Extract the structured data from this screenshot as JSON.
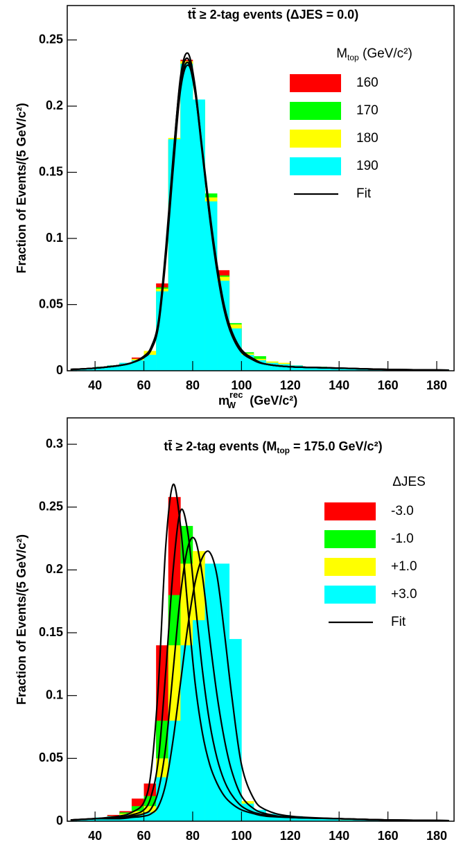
{
  "chart_data": [
    {
      "type": "histogram",
      "title": "tt̄ ≥ 2-tag events (ΔJES =  0.0)",
      "y_label": "Fraction of Events/(5 GeV/c²)",
      "x_label": {
        "main": "m",
        "sup": "rec",
        "sub": "W",
        "end": " (GeV/c²)"
      },
      "legend_title": {
        "main": "M",
        "sub": "top",
        "end": " (GeV/c²)"
      },
      "xlim": [
        28.6,
        187.1
      ],
      "ylim": [
        0,
        0.276
      ],
      "xticks": [
        40,
        60,
        80,
        100,
        120,
        140,
        160,
        180
      ],
      "yticks": [
        0,
        0.05,
        0.1,
        0.15,
        0.2,
        0.25
      ],
      "bins": [
        30,
        35,
        40,
        45,
        50,
        55,
        60,
        65,
        70,
        75,
        80,
        85,
        90,
        95,
        100,
        105,
        110,
        115,
        120,
        125,
        130,
        135,
        140,
        145,
        150,
        155,
        160,
        165,
        170,
        175,
        180,
        185
      ],
      "series": [
        {
          "name": "160",
          "color": "#ff0000",
          "values": [
            0.001,
            0.002,
            0.003,
            0.004,
            0.006,
            0.01,
            0.013,
            0.066,
            0.174,
            0.235,
            0.2,
            0.13,
            0.076,
            0.034,
            0.013,
            0.009,
            0.006,
            0.005,
            0.004,
            0.003,
            0.003,
            0.002,
            0.002,
            0.002,
            0.001,
            0.001,
            0.001,
            0.001,
            0.001,
            0.001,
            0.001
          ]
        },
        {
          "name": "170",
          "color": "#00ff00",
          "values": [
            0.001,
            0.002,
            0.003,
            0.004,
            0.006,
            0.009,
            0.014,
            0.063,
            0.175,
            0.233,
            0.203,
            0.134,
            0.072,
            0.036,
            0.014,
            0.011,
            0.007,
            0.005,
            0.004,
            0.003,
            0.003,
            0.002,
            0.002,
            0.002,
            0.001,
            0.001,
            0.001,
            0.001,
            0.001,
            0.001,
            0.001
          ]
        },
        {
          "name": "180",
          "color": "#ffff00",
          "values": [
            0.001,
            0.002,
            0.003,
            0.004,
            0.006,
            0.009,
            0.015,
            0.062,
            0.176,
            0.234,
            0.204,
            0.131,
            0.071,
            0.035,
            0.013,
            0.009,
            0.007,
            0.006,
            0.004,
            0.003,
            0.003,
            0.002,
            0.002,
            0.002,
            0.001,
            0.001,
            0.001,
            0.001,
            0.001,
            0.001,
            0.001
          ]
        },
        {
          "name": "190",
          "color": "#00ffff",
          "values": [
            0.001,
            0.002,
            0.003,
            0.004,
            0.006,
            0.008,
            0.012,
            0.06,
            0.175,
            0.232,
            0.205,
            0.128,
            0.068,
            0.032,
            0.012,
            0.008,
            0.006,
            0.005,
            0.004,
            0.003,
            0.003,
            0.002,
            0.002,
            0.002,
            0.001,
            0.001,
            0.001,
            0.001,
            0.001,
            0.001,
            0.001
          ]
        }
      ],
      "fit": {
        "name": "Fit",
        "color": "#000000",
        "x": [
          30,
          40,
          50,
          55,
          60,
          63,
          66,
          69,
          72,
          75,
          78,
          81,
          84,
          87,
          90,
          93,
          96,
          100,
          105,
          110,
          120,
          140,
          160,
          185
        ],
        "curves": [
          [
            0.001,
            0.002,
            0.004,
            0.006,
            0.01,
            0.016,
            0.035,
            0.09,
            0.16,
            0.222,
            0.24,
            0.215,
            0.165,
            0.115,
            0.075,
            0.045,
            0.027,
            0.014,
            0.008,
            0.005,
            0.003,
            0.002,
            0.001,
            0.0005
          ],
          [
            0.001,
            0.002,
            0.004,
            0.006,
            0.011,
            0.018,
            0.038,
            0.093,
            0.162,
            0.22,
            0.236,
            0.211,
            0.163,
            0.116,
            0.077,
            0.047,
            0.028,
            0.015,
            0.008,
            0.005,
            0.003,
            0.002,
            0.001,
            0.0005
          ],
          [
            0.001,
            0.002,
            0.004,
            0.006,
            0.01,
            0.017,
            0.036,
            0.088,
            0.155,
            0.215,
            0.233,
            0.21,
            0.165,
            0.118,
            0.078,
            0.048,
            0.029,
            0.015,
            0.008,
            0.005,
            0.003,
            0.002,
            0.001,
            0.0005
          ],
          [
            0.001,
            0.002,
            0.004,
            0.006,
            0.01,
            0.016,
            0.034,
            0.085,
            0.152,
            0.212,
            0.231,
            0.212,
            0.167,
            0.12,
            0.08,
            0.049,
            0.03,
            0.016,
            0.009,
            0.005,
            0.003,
            0.002,
            0.001,
            0.0005
          ]
        ]
      }
    },
    {
      "type": "histogram",
      "title": {
        "main": "tt̄ ≥ 2-tag events (M",
        "sub": "top",
        "end": " = 175.0 GeV/c²)"
      },
      "y_label": "Fraction of Events/(5 GeV/c²)",
      "x_label": {
        "main": "m",
        "sup": "rec",
        "sub": "W",
        "end": " (GeV/c²)"
      },
      "legend_title": "ΔJES",
      "xlim": [
        28.6,
        187.1
      ],
      "ylim": [
        0,
        0.321
      ],
      "xticks": [
        40,
        60,
        80,
        100,
        120,
        140,
        160,
        180
      ],
      "yticks": [
        0,
        0.05,
        0.1,
        0.15,
        0.2,
        0.25,
        0.3
      ],
      "bins": [
        30,
        35,
        40,
        45,
        50,
        55,
        60,
        65,
        70,
        75,
        80,
        85,
        90,
        95,
        100,
        105,
        110,
        115,
        120,
        125,
        130,
        135,
        140,
        145,
        150,
        155,
        160,
        165,
        170,
        175,
        180,
        185
      ],
      "series": [
        {
          "name": "-3.0",
          "color": "#ff0000",
          "values": [
            0.001,
            0.002,
            0.003,
            0.005,
            0.008,
            0.018,
            0.03,
            0.14,
            0.258,
            0.2,
            0.13,
            0.07,
            0.035,
            0.016,
            0.008,
            0.006,
            0.004,
            0.003,
            0.003,
            0.002,
            0.002,
            0.002,
            0.001,
            0.001,
            0.001,
            0.001,
            0.001,
            0.001,
            0.001,
            0.001,
            0.001
          ]
        },
        {
          "name": "-1.0",
          "color": "#00ff00",
          "values": [
            0.001,
            0.002,
            0.003,
            0.004,
            0.007,
            0.012,
            0.02,
            0.08,
            0.18,
            0.235,
            0.18,
            0.11,
            0.055,
            0.025,
            0.01,
            0.007,
            0.005,
            0.004,
            0.003,
            0.002,
            0.002,
            0.002,
            0.001,
            0.001,
            0.001,
            0.001,
            0.001,
            0.001,
            0.001,
            0.001,
            0.001
          ]
        },
        {
          "name": "+1.0",
          "color": "#ffff00",
          "values": [
            0.001,
            0.002,
            0.003,
            0.004,
            0.006,
            0.008,
            0.012,
            0.05,
            0.14,
            0.205,
            0.215,
            0.16,
            0.09,
            0.045,
            0.016,
            0.008,
            0.005,
            0.004,
            0.003,
            0.002,
            0.002,
            0.002,
            0.001,
            0.001,
            0.001,
            0.001,
            0.001,
            0.001,
            0.001,
            0.001,
            0.001
          ]
        },
        {
          "name": "+3.0",
          "color": "#00ffff",
          "values": [
            0.001,
            0.002,
            0.003,
            0.004,
            0.005,
            0.005,
            0.007,
            0.035,
            0.08,
            0.14,
            0.16,
            0.205,
            0.205,
            0.145,
            0.014,
            0.009,
            0.006,
            0.005,
            0.004,
            0.003,
            0.002,
            0.002,
            0.001,
            0.001,
            0.001,
            0.001,
            0.001,
            0.001,
            0.001,
            0.001,
            0.001
          ]
        }
      ],
      "fit": {
        "name": "Fit",
        "color": "#000000",
        "x": [
          30,
          40,
          50,
          55,
          60,
          63,
          66,
          69,
          72,
          75,
          78,
          81,
          84,
          87,
          90,
          93,
          96,
          100,
          105,
          110,
          120,
          140,
          160,
          185
        ],
        "curves": [
          [
            0.001,
            0.002,
            0.004,
            0.007,
            0.015,
            0.04,
            0.11,
            0.22,
            0.268,
            0.235,
            0.17,
            0.11,
            0.07,
            0.045,
            0.03,
            0.02,
            0.014,
            0.009,
            0.006,
            0.004,
            0.003,
            0.002,
            0.001,
            0.0005
          ],
          [
            0.001,
            0.002,
            0.003,
            0.005,
            0.009,
            0.02,
            0.05,
            0.12,
            0.2,
            0.247,
            0.23,
            0.175,
            0.12,
            0.078,
            0.05,
            0.032,
            0.021,
            0.012,
            0.007,
            0.005,
            0.003,
            0.002,
            0.001,
            0.0005
          ],
          [
            0.001,
            0.002,
            0.003,
            0.004,
            0.006,
            0.01,
            0.025,
            0.06,
            0.12,
            0.18,
            0.218,
            0.224,
            0.195,
            0.145,
            0.1,
            0.065,
            0.04,
            0.02,
            0.01,
            0.006,
            0.003,
            0.002,
            0.001,
            0.0005
          ],
          [
            0.001,
            0.002,
            0.002,
            0.003,
            0.004,
            0.006,
            0.012,
            0.03,
            0.065,
            0.11,
            0.155,
            0.19,
            0.21,
            0.214,
            0.195,
            0.15,
            0.1,
            0.045,
            0.018,
            0.009,
            0.004,
            0.002,
            0.001,
            0.0005
          ]
        ]
      }
    }
  ]
}
